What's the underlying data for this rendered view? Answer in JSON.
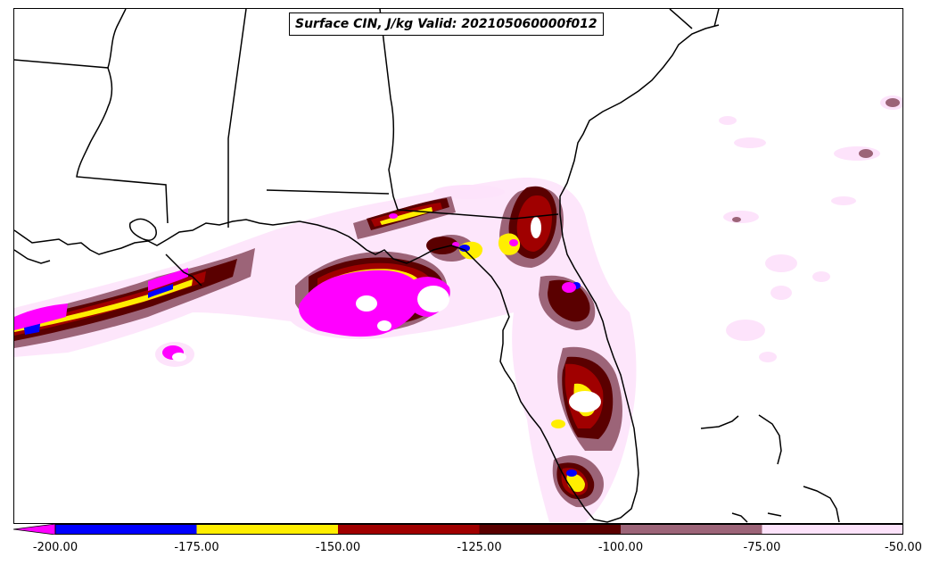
{
  "title": "Surface CIN, J/kg Valid: 202105060000f012",
  "colorbar": {
    "bins": [
      {
        "from": -200,
        "to": -175,
        "color": "#0000ff"
      },
      {
        "from": -175,
        "to": -150,
        "color": "#ffee00"
      },
      {
        "from": -150,
        "to": -125,
        "color": "#a00000"
      },
      {
        "from": -125,
        "to": -100,
        "color": "#5a0000"
      },
      {
        "from": -100,
        "to": -75,
        "color": "#9c6478"
      },
      {
        "from": -75,
        "to": -50,
        "color": "#fde3fb"
      }
    ],
    "extend_below_color": "#ff00ff",
    "tick_labels": [
      "-200.00",
      "-175.00",
      "-150.00",
      "-125.00",
      "-100.00",
      "-75.00",
      "-50.00"
    ]
  }
}
